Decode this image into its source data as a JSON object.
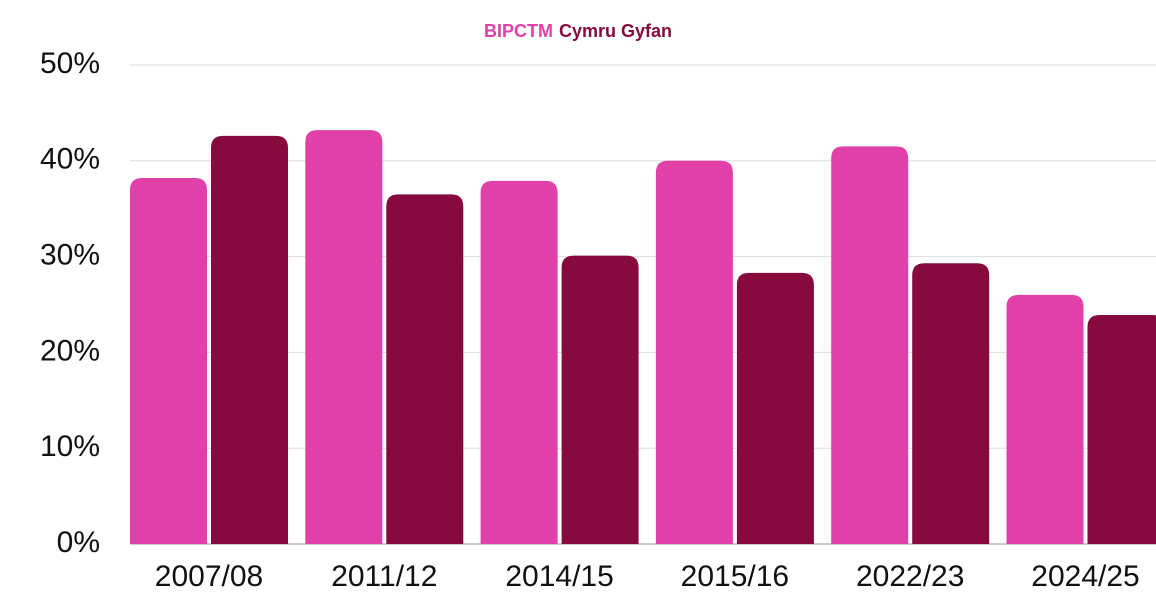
{
  "chart_data": {
    "type": "bar",
    "categories": [
      "2007/08",
      "2011/12",
      "2014/15",
      "2015/16",
      "2022/23",
      "2024/25"
    ],
    "series": [
      {
        "name": "BIPCTM",
        "color": "#e040a8",
        "values": [
          38.2,
          43.2,
          37.9,
          40.0,
          41.5,
          26.0
        ]
      },
      {
        "name": "Cymru Gyfan",
        "color": "#860a3e",
        "values": [
          42.6,
          36.5,
          30.1,
          28.3,
          29.3,
          23.9
        ]
      }
    ],
    "ylim": [
      0,
      50
    ],
    "yticks": [
      {
        "value": 0,
        "label": "0%"
      },
      {
        "value": 10,
        "label": "10%"
      },
      {
        "value": 20,
        "label": "20%"
      },
      {
        "value": 30,
        "label": "30%"
      },
      {
        "value": 40,
        "label": "40%"
      },
      {
        "value": 50,
        "label": "50%"
      }
    ],
    "grid": true
  }
}
